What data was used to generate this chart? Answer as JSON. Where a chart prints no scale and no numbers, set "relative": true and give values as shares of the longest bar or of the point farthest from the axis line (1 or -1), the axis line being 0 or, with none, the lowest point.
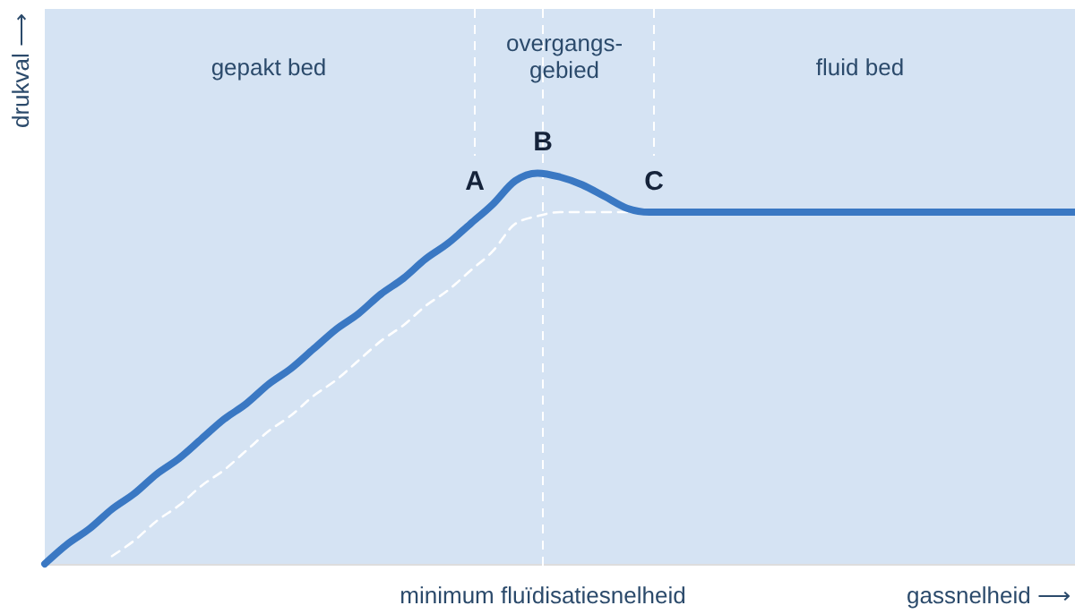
{
  "chart_data": {
    "type": "line",
    "relative": true,
    "xlabel": "gassnelheid ⟶",
    "ylabel": "drukval ⟶",
    "marker": "none",
    "categories": [
      null,
      null,
      null,
      null,
      null,
      null,
      null,
      null,
      null,
      null,
      null,
      null,
      null,
      null,
      null,
      null,
      null,
      null,
      null,
      null,
      null,
      null,
      null,
      null,
      null,
      null,
      null,
      null,
      null,
      null,
      null,
      null,
      null,
      null,
      null,
      null,
      null,
      null,
      null,
      null,
      null,
      null,
      null,
      null,
      null,
      null,
      null
    ],
    "series": [
      {
        "color": "#3a78c3",
        "line_style": "solid",
        "values": [
          0,
          0.05,
          0.09,
          0.14,
          0.18,
          0.23,
          0.27,
          0.32,
          0.37,
          0.41,
          0.46,
          0.5,
          0.55,
          0.6,
          0.64,
          0.69,
          0.73,
          0.78,
          0.82,
          0.87,
          0.92,
          0.98,
          1.0,
          0.99,
          0.97,
          0.94,
          0.91,
          0.9,
          0.9,
          0.9,
          0.9,
          0.9,
          0.9,
          0.9,
          0.9,
          0.9,
          0.9,
          0.9,
          0.9,
          0.9,
          0.9,
          0.9,
          0.9,
          0.9,
          0.9,
          0.9,
          0.9
        ]
      },
      {
        "color": "#ffffff",
        "line_style": "dashed",
        "values": [
          null,
          null,
          null,
          0.02,
          0.06,
          0.11,
          0.15,
          0.2,
          0.24,
          0.29,
          0.34,
          0.38,
          0.43,
          0.47,
          0.52,
          0.57,
          0.61,
          0.66,
          0.7,
          0.75,
          0.8,
          0.87,
          0.89,
          0.9,
          0.9,
          0.9,
          0.9,
          null,
          null,
          null,
          null,
          null,
          null,
          null,
          null,
          null,
          null,
          null,
          null,
          null,
          null,
          null,
          null,
          null,
          null,
          null,
          null
        ]
      }
    ],
    "annotations": [
      "gepakt bed",
      "overgangs-\ngebied",
      "fluid bed",
      "A",
      "B",
      "C",
      "minimum fluïdisatiesnelheid"
    ]
  }
}
